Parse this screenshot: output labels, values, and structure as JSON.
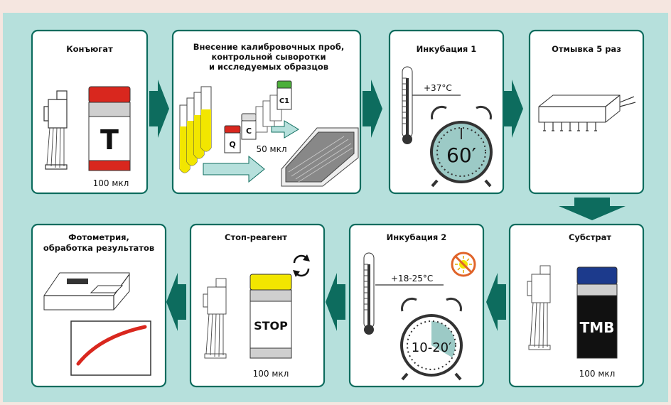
{
  "steps": {
    "conjugate": {
      "title": "Конъюгат",
      "vial_letter": "T",
      "volume": "100 мкл"
    },
    "calibration": {
      "title_line1": "Внесение калибровочных проб,",
      "title_line2": "контрольной сыворотки",
      "title_line3": "и исследуемых образцов",
      "vial_q": "Q",
      "vial_c": "C",
      "vial_c1": "C1",
      "volume": "50 мкл"
    },
    "incubation1": {
      "title": "Инкубация 1",
      "temperature": "+37°C",
      "time": "60′"
    },
    "wash": {
      "title": "Отмывка 5 раз"
    },
    "substrate": {
      "title": "Субстрат",
      "vial_letter": "TMB",
      "volume": "100 мкл"
    },
    "incubation2": {
      "title": "Инкубация 2",
      "temperature": "+18-25°C",
      "time": "10-20′"
    },
    "stop": {
      "title": "Стоп-реагент",
      "vial_letter": "STOP",
      "volume": "100 мкл"
    },
    "photometry": {
      "title_line1": "Фотометрия,",
      "title_line2": "обработка результатов"
    }
  },
  "colors": {
    "panel": "#b6e0dc",
    "border": "#0d6c5e",
    "conjugate_cap": "#d9271e",
    "reagent_yellow": "#f2e600",
    "tmb_cap": "#1c3a8c",
    "timer_face": "#9ccac6",
    "curve": "#d9271e"
  },
  "icons": [
    "pipette-icon",
    "thermometer-icon",
    "alarm-clock-icon",
    "microplate-icon",
    "washer-icon",
    "no-light-icon",
    "refresh-icon",
    "photometer-icon"
  ]
}
